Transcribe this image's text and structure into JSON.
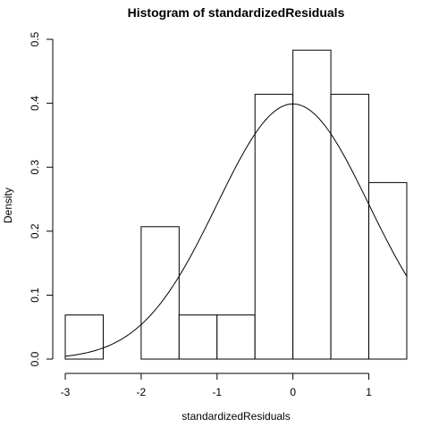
{
  "chart_data": {
    "type": "bar",
    "title": "Histogram of standardizedResiduals",
    "xlabel": "standardizedResiduals",
    "ylabel": "Density",
    "xlim": [
      -3,
      1.5
    ],
    "ylim": [
      0,
      0.5
    ],
    "x_ticks": [
      "-3",
      "-2",
      "-1",
      "0",
      "1"
    ],
    "y_ticks": [
      "0.0",
      "0.1",
      "0.2",
      "0.3",
      "0.4",
      "0.5"
    ],
    "bins": [
      {
        "start": -3.0,
        "end": -2.5,
        "density": 0.069
      },
      {
        "start": -2.5,
        "end": -2.0,
        "density": 0.0
      },
      {
        "start": -2.0,
        "end": -1.5,
        "density": 0.207
      },
      {
        "start": -1.5,
        "end": -1.0,
        "density": 0.069
      },
      {
        "start": -1.0,
        "end": -0.5,
        "density": 0.069
      },
      {
        "start": -0.5,
        "end": 0.0,
        "density": 0.414
      },
      {
        "start": 0.0,
        "end": 0.5,
        "density": 0.483
      },
      {
        "start": 0.5,
        "end": 1.0,
        "density": 0.414
      },
      {
        "start": 1.0,
        "end": 1.5,
        "density": 0.276
      }
    ],
    "overlay": {
      "type": "normal-density",
      "mean": 0,
      "sd": 1
    }
  }
}
